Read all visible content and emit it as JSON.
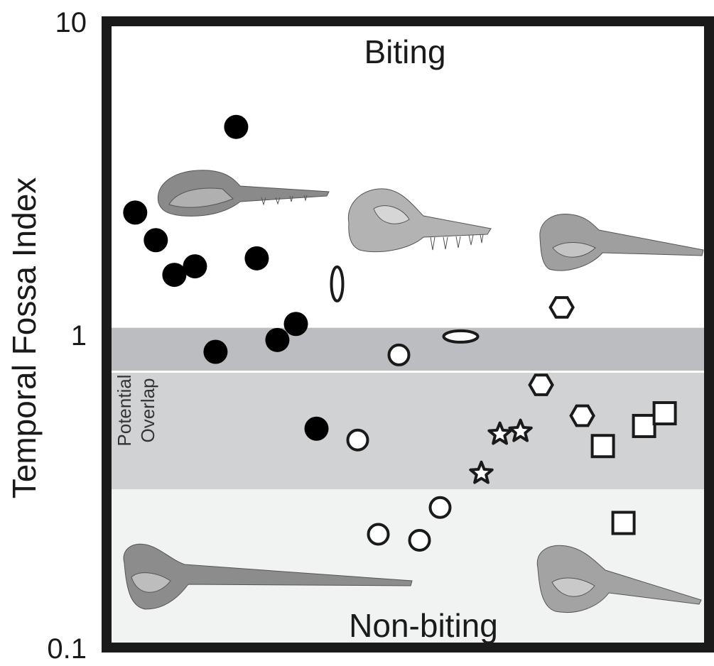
{
  "chart_data": {
    "type": "scatter",
    "title": "",
    "xlabel": "",
    "ylabel": "Temporal Fossa Index",
    "yscale": "log",
    "ylim": [
      0.1,
      10
    ],
    "xlim": [
      0,
      28
    ],
    "y_ticks": [
      {
        "value": 10,
        "label": "10"
      },
      {
        "value": 1,
        "label": "1"
      },
      {
        "value": 0.1,
        "label": "0.1"
      }
    ],
    "grid": false,
    "legend": "none",
    "threshold_line": 0.76,
    "bands": [
      {
        "name": "overlap-upper",
        "from": 0.76,
        "to": 1.05,
        "color": "#bcbdc0"
      },
      {
        "name": "overlap-lower",
        "from": 0.32,
        "to": 0.76,
        "color": "#d1d2d4"
      },
      {
        "name": "non-biting-zone",
        "from": 0.1,
        "to": 0.32,
        "color": "#f1f2f2"
      }
    ],
    "annotations": {
      "biting": "Biting",
      "non_biting": "Non-biting",
      "overlap": [
        "Potential",
        "Overlap"
      ]
    },
    "series": [
      {
        "marker": "filled-circle",
        "points": [
          {
            "x": 0.7,
            "y": 2.45
          },
          {
            "x": 1.7,
            "y": 2.0
          },
          {
            "x": 2.6,
            "y": 1.55
          },
          {
            "x": 3.6,
            "y": 1.65
          },
          {
            "x": 4.6,
            "y": 0.88
          },
          {
            "x": 5.6,
            "y": 4.6
          },
          {
            "x": 6.6,
            "y": 1.75
          },
          {
            "x": 7.6,
            "y": 0.96
          },
          {
            "x": 8.5,
            "y": 1.08
          },
          {
            "x": 9.5,
            "y": 0.5
          }
        ]
      },
      {
        "marker": "open-ellipse-vertical",
        "points": [
          {
            "x": 10.5,
            "y": 1.45
          }
        ]
      },
      {
        "marker": "open-circle",
        "points": [
          {
            "x": 11.5,
            "y": 0.46
          },
          {
            "x": 12.5,
            "y": 0.23
          },
          {
            "x": 13.5,
            "y": 0.86
          },
          {
            "x": 14.5,
            "y": 0.22
          },
          {
            "x": 15.5,
            "y": 0.28
          }
        ]
      },
      {
        "marker": "open-ellipse-horizontal",
        "points": [
          {
            "x": 16.5,
            "y": 0.985
          }
        ]
      },
      {
        "marker": "open-star",
        "points": [
          {
            "x": 17.5,
            "y": 0.36
          },
          {
            "x": 18.4,
            "y": 0.48
          },
          {
            "x": 19.4,
            "y": 0.49
          }
        ]
      },
      {
        "marker": "open-hexagon",
        "points": [
          {
            "x": 20.4,
            "y": 0.69
          },
          {
            "x": 21.4,
            "y": 1.22
          },
          {
            "x": 22.4,
            "y": 0.55
          }
        ]
      },
      {
        "marker": "open-square",
        "points": [
          {
            "x": 23.4,
            "y": 0.44
          },
          {
            "x": 24.4,
            "y": 0.25
          },
          {
            "x": 25.4,
            "y": 0.51
          },
          {
            "x": 26.4,
            "y": 0.56
          }
        ]
      }
    ],
    "images": [
      "skull-illustration",
      "skull-illustration",
      "skull-illustration",
      "skull-illustration",
      "skull-illustration"
    ]
  }
}
